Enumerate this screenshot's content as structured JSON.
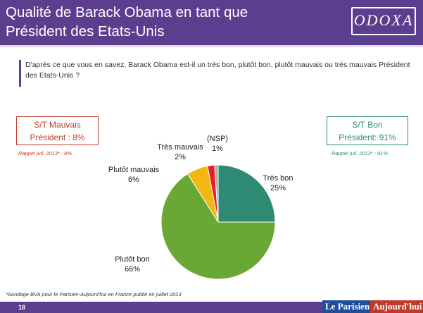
{
  "header": {
    "title_line1": "Qualité de Barack Obama en tant que",
    "title_line2": "Président des Etats-Unis",
    "logo": "ODOXA"
  },
  "question": "D'après ce que vous en savez, Barack Obama est-il un très bon, plutôt bon, plutôt mauvais ou très mauvais Président des Etats-Unis ?",
  "summary_bad": {
    "line1": "S/T Mauvais",
    "line2": "Président : 8%",
    "recall": "Rappel juil. 2013* : 8%",
    "color": "#c0392b"
  },
  "summary_good": {
    "line1": "S/T Bon",
    "line2": "Président: 91%",
    "recall": "Rappel juil. 2013* : 91%",
    "color": "#2e8b73"
  },
  "chart_data": {
    "type": "pie",
    "slices": [
      {
        "label": "Très bon",
        "value_label": "25%",
        "value": 25,
        "color": "#2e8b73"
      },
      {
        "label": "Plutôt bon",
        "value_label": "66%",
        "value": 66,
        "color": "#6aa835"
      },
      {
        "label": "Plutôt mauvais",
        "value_label": "6%",
        "value": 6,
        "color": "#f2b711"
      },
      {
        "label": "Très mauvais",
        "value_label": "2%",
        "value": 2,
        "color": "#e0202a"
      },
      {
        "label": "(NSP)",
        "value_label": "1%",
        "value": 1,
        "color": "#a9a9a9"
      }
    ],
    "start": "12 o'clock",
    "direction": "clockwise"
  },
  "footnote": "*Sondage BVA pour le Parisien-Aujourd'hui en France publié en juillet 2013",
  "footer": {
    "page": "18",
    "brand1": "Le Parisien",
    "brand2": "Aujourd'hui"
  }
}
